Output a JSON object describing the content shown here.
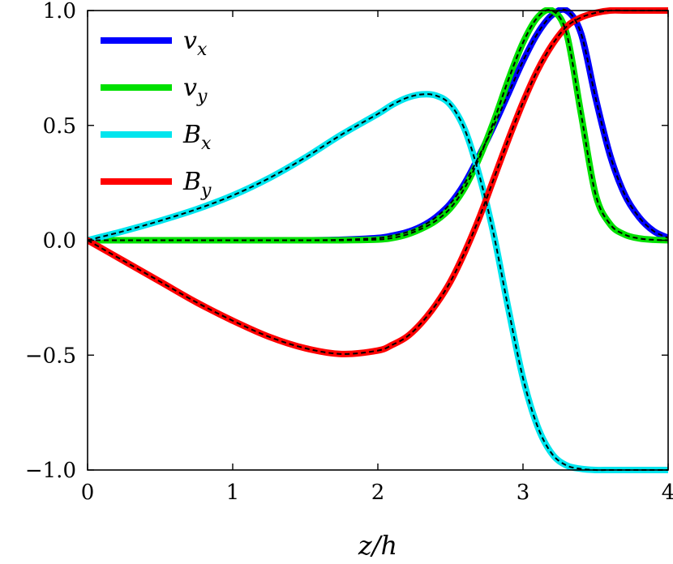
{
  "chart_data": {
    "type": "line",
    "xlabel": "z/h",
    "ylabel": "",
    "xlim": [
      0,
      4
    ],
    "ylim": [
      -1.0,
      1.0
    ],
    "xticks": [
      0,
      1,
      2,
      3,
      4
    ],
    "xtick_labels": [
      "0",
      "1",
      "2",
      "3",
      "4"
    ],
    "yticks": [
      -1.0,
      -0.5,
      0.0,
      0.5,
      1.0
    ],
    "ytick_labels": [
      "−1.0",
      "−0.5",
      "0.0",
      "0.5",
      "1.0"
    ],
    "grid": false,
    "legend_position": "top-left",
    "reference_style": "black dashed line overlay on each curve",
    "x": [
      0,
      0.25,
      0.5,
      0.75,
      1.0,
      1.25,
      1.5,
      1.75,
      2.0,
      2.1,
      2.2,
      2.3,
      2.4,
      2.5,
      2.6,
      2.7,
      2.8,
      2.9,
      3.0,
      3.1,
      3.2,
      3.3,
      3.4,
      3.5,
      3.6,
      3.7,
      3.8,
      3.9,
      4.0
    ],
    "series": [
      {
        "name": "v_x",
        "label_base": "v",
        "label_sub": "x",
        "color": "#0000ff",
        "values": [
          0,
          0,
          0,
          0,
          0,
          0,
          0,
          0.002,
          0.01,
          0.02,
          0.035,
          0.06,
          0.1,
          0.16,
          0.25,
          0.37,
          0.5,
          0.64,
          0.78,
          0.9,
          0.98,
          1.0,
          0.9,
          0.62,
          0.37,
          0.2,
          0.1,
          0.04,
          0.01
        ]
      },
      {
        "name": "v_y",
        "label_base": "v",
        "label_sub": "y",
        "color": "#00e000",
        "values": [
          0,
          0,
          0,
          0,
          0,
          0,
          0,
          0,
          0.003,
          0.01,
          0.025,
          0.05,
          0.085,
          0.14,
          0.23,
          0.36,
          0.52,
          0.7,
          0.86,
          0.97,
          1.0,
          0.9,
          0.55,
          0.2,
          0.07,
          0.025,
          0.008,
          0.002,
          0.0
        ]
      },
      {
        "name": "B_x",
        "label_base": "B",
        "label_sub": "x",
        "color": "#00e5ee",
        "values": [
          0,
          0.04,
          0.085,
          0.135,
          0.195,
          0.27,
          0.36,
          0.46,
          0.55,
          0.59,
          0.62,
          0.635,
          0.63,
          0.59,
          0.48,
          0.28,
          0.02,
          -0.3,
          -0.6,
          -0.81,
          -0.93,
          -0.98,
          -0.995,
          -1.0,
          -1.0,
          -1.0,
          -1.0,
          -1.0,
          -1.0
        ]
      },
      {
        "name": "B_y",
        "label_base": "B",
        "label_sub": "y",
        "color": "#ff0000",
        "values": [
          0,
          -0.09,
          -0.18,
          -0.27,
          -0.35,
          -0.42,
          -0.47,
          -0.495,
          -0.48,
          -0.455,
          -0.42,
          -0.36,
          -0.28,
          -0.18,
          -0.05,
          0.1,
          0.27,
          0.44,
          0.6,
          0.74,
          0.85,
          0.93,
          0.97,
          0.99,
          1.0,
          1.0,
          1.0,
          1.0,
          1.0
        ]
      }
    ]
  }
}
